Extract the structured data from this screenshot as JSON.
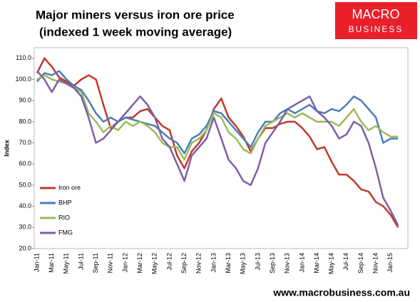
{
  "chart_data": {
    "type": "line",
    "title": "Major miners versus iron ore price",
    "subtitle": "(indexed 1 week moving average)",
    "ylabel": "Index",
    "logo": [
      "MACRO",
      "BUSINESS"
    ],
    "footer": "www.macrobusiness.com.au",
    "categories": [
      "Jan-11",
      null,
      "Mar-11",
      null,
      "May-11",
      null,
      "Jul-11",
      null,
      "Sep-11",
      null,
      "Nov-11",
      null,
      "Jan-12",
      null,
      "Mar-12",
      null,
      "May-12",
      null,
      "Jul-12",
      null,
      "Sep-12",
      null,
      "Nov-12",
      null,
      "Jan-13",
      null,
      "Mar-13",
      null,
      "May-13",
      null,
      "Jul-13",
      null,
      "Sep-13",
      null,
      "Nov-13",
      null,
      "Jan-14",
      null,
      "Mar-14",
      null,
      "May-14",
      null,
      "Jul-14",
      null,
      "Sep-14",
      null,
      "Nov-14",
      null,
      "Jan-15",
      null
    ],
    "series": [
      {
        "name": "Iron ore",
        "color": "#c0392b",
        "values": [
          103,
          110,
          106,
          101,
          99,
          97,
          100,
          102,
          100,
          88,
          77,
          80,
          82,
          82,
          85,
          86,
          82,
          78,
          76,
          64,
          58,
          66,
          70,
          76,
          86,
          91,
          82,
          78,
          73,
          66,
          72,
          77,
          77,
          79,
          80,
          80,
          77,
          73,
          67,
          68,
          61,
          55,
          55,
          52,
          48,
          47,
          42,
          40,
          36,
          30
        ]
      },
      {
        "name": "BHP",
        "color": "#4a7ebb",
        "values": [
          99,
          103,
          102,
          104,
          100,
          97,
          95,
          90,
          84,
          80,
          82,
          80,
          82,
          81,
          80,
          79,
          78,
          75,
          72,
          70,
          65,
          72,
          74,
          78,
          85,
          84,
          80,
          76,
          72,
          68,
          75,
          80,
          80,
          84,
          86,
          84,
          86,
          88,
          85,
          84,
          86,
          85,
          88,
          92,
          90,
          86,
          82,
          70,
          72,
          72
        ]
      },
      {
        "name": "RIO",
        "color": "#9bbb59",
        "values": [
          100,
          102,
          100,
          99,
          98,
          96,
          94,
          84,
          80,
          75,
          78,
          76,
          80,
          78,
          80,
          78,
          75,
          70,
          68,
          68,
          62,
          70,
          72,
          76,
          84,
          82,
          75,
          72,
          67,
          65,
          72,
          78,
          80,
          82,
          84,
          82,
          84,
          82,
          80,
          80,
          80,
          78,
          82,
          86,
          80,
          76,
          78,
          75,
          73,
          73
        ]
      },
      {
        "name": "FMG",
        "color": "#7e5ea8",
        "values": [
          104,
          100,
          94,
          100,
          98,
          96,
          92,
          82,
          70,
          72,
          76,
          80,
          84,
          88,
          92,
          88,
          82,
          72,
          68,
          60,
          52,
          64,
          68,
          72,
          82,
          72,
          62,
          58,
          52,
          50,
          58,
          70,
          75,
          80,
          86,
          88,
          90,
          92,
          85,
          82,
          78,
          72,
          74,
          80,
          78,
          70,
          58,
          44,
          38,
          31
        ]
      }
    ],
    "ylim": [
      20,
      115
    ],
    "yticks": [
      {
        "value": 20,
        "label": "20.0"
      },
      {
        "value": 30,
        "label": "30.0"
      },
      {
        "value": 40,
        "label": "40.0"
      },
      {
        "value": 50,
        "label": "50.0"
      },
      {
        "value": 60,
        "label": "60.0"
      },
      {
        "value": 70,
        "label": "70.0"
      },
      {
        "value": 80,
        "label": "80.0"
      },
      {
        "value": 90,
        "label": "90.0"
      },
      {
        "value": 100,
        "label": "100.0"
      },
      {
        "value": 110,
        "label": "110.0"
      }
    ],
    "grid": false,
    "legend": "lower left"
  }
}
